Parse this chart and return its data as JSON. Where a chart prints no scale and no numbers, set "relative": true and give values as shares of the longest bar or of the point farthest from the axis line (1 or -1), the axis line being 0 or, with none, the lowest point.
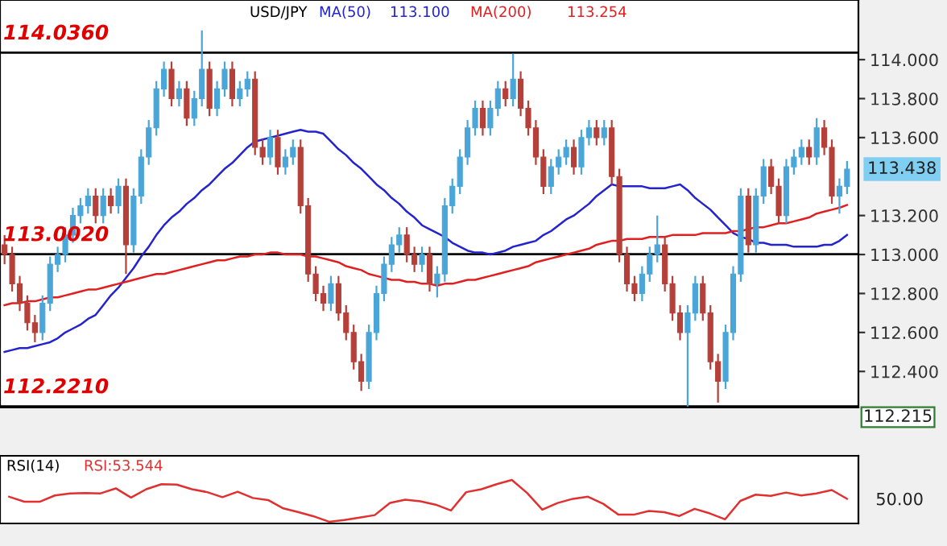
{
  "chart_data": [
    {
      "type": "candlestick",
      "title": "USD/JPY",
      "categories": [
        null,
        null,
        null,
        null,
        null,
        null,
        null,
        null,
        null,
        null,
        null,
        null,
        null,
        null,
        null,
        null,
        null,
        null,
        null,
        null,
        null,
        null,
        null,
        null,
        null,
        null,
        null,
        null,
        null,
        null,
        null,
        null,
        null,
        null,
        null,
        null,
        null,
        null,
        null,
        null,
        null,
        null,
        null,
        null,
        null,
        null,
        null,
        null,
        null,
        null,
        null,
        null,
        null,
        null,
        null,
        null,
        null,
        null,
        null,
        null,
        null,
        null,
        null,
        null,
        null,
        null,
        null,
        null,
        null,
        null,
        null,
        null,
        null,
        null,
        null,
        null,
        null,
        null,
        null,
        null,
        null,
        null,
        null,
        null,
        null,
        null,
        null,
        null,
        null,
        null,
        null,
        null,
        null,
        null,
        null,
        null,
        null,
        null,
        null,
        null,
        null,
        null,
        null,
        null,
        null,
        null,
        null,
        null,
        null,
        null,
        null,
        null
      ],
      "ohlc": [
        [
          113.05,
          113.1,
          112.95,
          113.0
        ],
        [
          113.0,
          113.04,
          112.81,
          112.85
        ],
        [
          112.85,
          112.89,
          112.71,
          112.75
        ],
        [
          112.75,
          112.79,
          112.61,
          112.65
        ],
        [
          112.65,
          112.69,
          112.55,
          112.6
        ],
        [
          112.6,
          112.79,
          112.56,
          112.75
        ],
        [
          112.75,
          112.99,
          112.71,
          112.95
        ],
        [
          112.95,
          113.04,
          112.91,
          113.0
        ],
        [
          113.0,
          113.14,
          112.96,
          113.1
        ],
        [
          113.1,
          113.24,
          113.06,
          113.2
        ],
        [
          113.2,
          113.29,
          113.16,
          113.25
        ],
        [
          113.25,
          113.34,
          113.21,
          113.3
        ],
        [
          113.3,
          113.34,
          113.16,
          113.2
        ],
        [
          113.2,
          113.34,
          113.16,
          113.3
        ],
        [
          113.3,
          113.34,
          113.21,
          113.25
        ],
        [
          113.25,
          113.39,
          113.21,
          113.35
        ],
        [
          113.35,
          113.39,
          112.9,
          113.05
        ],
        [
          113.05,
          113.34,
          113.01,
          113.3
        ],
        [
          113.3,
          113.54,
          113.26,
          113.5
        ],
        [
          113.5,
          113.69,
          113.46,
          113.65
        ],
        [
          113.65,
          113.89,
          113.61,
          113.85
        ],
        [
          113.85,
          113.99,
          113.81,
          113.95
        ],
        [
          113.95,
          113.99,
          113.76,
          113.8
        ],
        [
          113.8,
          113.89,
          113.76,
          113.85
        ],
        [
          113.85,
          113.89,
          113.66,
          113.7
        ],
        [
          113.7,
          113.84,
          113.66,
          113.8
        ],
        [
          113.8,
          114.15,
          113.76,
          113.95
        ],
        [
          113.95,
          113.99,
          113.71,
          113.75
        ],
        [
          113.75,
          113.89,
          113.71,
          113.85
        ],
        [
          113.85,
          113.99,
          113.81,
          113.95
        ],
        [
          113.95,
          113.99,
          113.76,
          113.8
        ],
        [
          113.8,
          113.89,
          113.76,
          113.85
        ],
        [
          113.85,
          113.94,
          113.81,
          113.9
        ],
        [
          113.9,
          113.94,
          113.51,
          113.55
        ],
        [
          113.55,
          113.59,
          113.46,
          113.5
        ],
        [
          113.5,
          113.64,
          113.46,
          113.6
        ],
        [
          113.6,
          113.64,
          113.41,
          113.45
        ],
        [
          113.45,
          113.54,
          113.41,
          113.5
        ],
        [
          113.5,
          113.59,
          113.46,
          113.55
        ],
        [
          113.55,
          113.59,
          113.21,
          113.25
        ],
        [
          113.25,
          113.29,
          112.86,
          112.9
        ],
        [
          112.9,
          112.94,
          112.76,
          112.8
        ],
        [
          112.8,
          112.84,
          112.71,
          112.75
        ],
        [
          112.75,
          112.89,
          112.71,
          112.85
        ],
        [
          112.85,
          112.89,
          112.66,
          112.7
        ],
        [
          112.7,
          112.74,
          112.56,
          112.6
        ],
        [
          112.6,
          112.64,
          112.41,
          112.45
        ],
        [
          112.45,
          112.49,
          112.3,
          112.35
        ],
        [
          112.35,
          112.64,
          112.31,
          112.6
        ],
        [
          112.6,
          112.84,
          112.56,
          112.8
        ],
        [
          112.8,
          112.99,
          112.76,
          112.95
        ],
        [
          112.95,
          113.09,
          112.91,
          113.05
        ],
        [
          113.05,
          113.14,
          113.01,
          113.1
        ],
        [
          113.1,
          113.14,
          112.96,
          113.0
        ],
        [
          113.0,
          113.04,
          112.91,
          112.95
        ],
        [
          112.95,
          113.04,
          112.91,
          113.0
        ],
        [
          113.0,
          113.04,
          112.81,
          112.85
        ],
        [
          112.85,
          112.94,
          112.78,
          112.9
        ],
        [
          112.9,
          113.29,
          112.86,
          113.25
        ],
        [
          113.25,
          113.39,
          113.21,
          113.35
        ],
        [
          113.35,
          113.54,
          113.31,
          113.5
        ],
        [
          113.5,
          113.69,
          113.46,
          113.65
        ],
        [
          113.65,
          113.79,
          113.61,
          113.75
        ],
        [
          113.75,
          113.79,
          113.61,
          113.65
        ],
        [
          113.65,
          113.79,
          113.61,
          113.75
        ],
        [
          113.75,
          113.89,
          113.71,
          113.85
        ],
        [
          113.85,
          113.89,
          113.76,
          113.8
        ],
        [
          113.8,
          114.03,
          113.76,
          113.9
        ],
        [
          113.9,
          113.94,
          113.71,
          113.75
        ],
        [
          113.75,
          113.79,
          113.61,
          113.65
        ],
        [
          113.65,
          113.69,
          113.46,
          113.5
        ],
        [
          113.5,
          113.54,
          113.31,
          113.35
        ],
        [
          113.35,
          113.49,
          113.31,
          113.45
        ],
        [
          113.45,
          113.54,
          113.41,
          113.5
        ],
        [
          113.5,
          113.59,
          113.46,
          113.55
        ],
        [
          113.55,
          113.59,
          113.41,
          113.45
        ],
        [
          113.45,
          113.64,
          113.41,
          113.6
        ],
        [
          113.6,
          113.69,
          113.56,
          113.65
        ],
        [
          113.65,
          113.69,
          113.56,
          113.6
        ],
        [
          113.6,
          113.69,
          113.56,
          113.65
        ],
        [
          113.65,
          113.69,
          113.36,
          113.4
        ],
        [
          113.4,
          113.44,
          112.96,
          113.0
        ],
        [
          113.0,
          113.04,
          112.81,
          112.85
        ],
        [
          112.85,
          112.89,
          112.76,
          112.8
        ],
        [
          112.8,
          112.94,
          112.76,
          112.9
        ],
        [
          112.9,
          113.04,
          112.86,
          113.0
        ],
        [
          113.0,
          113.2,
          112.96,
          113.05
        ],
        [
          113.05,
          113.09,
          112.81,
          112.85
        ],
        [
          112.85,
          112.89,
          112.66,
          112.7
        ],
        [
          112.7,
          112.74,
          112.56,
          112.6
        ],
        [
          112.6,
          112.74,
          112.22,
          112.7
        ],
        [
          112.7,
          112.89,
          112.66,
          112.85
        ],
        [
          112.85,
          112.89,
          112.66,
          112.7
        ],
        [
          112.7,
          112.74,
          112.41,
          112.45
        ],
        [
          112.45,
          112.49,
          112.24,
          112.35
        ],
        [
          112.35,
          112.64,
          112.31,
          112.6
        ],
        [
          112.6,
          112.94,
          112.56,
          112.9
        ],
        [
          112.9,
          113.34,
          112.86,
          113.3
        ],
        [
          113.3,
          113.34,
          113.01,
          113.05
        ],
        [
          113.05,
          113.34,
          113.01,
          113.3
        ],
        [
          113.3,
          113.49,
          113.26,
          113.45
        ],
        [
          113.45,
          113.49,
          113.31,
          113.35
        ],
        [
          113.35,
          113.39,
          113.16,
          113.2
        ],
        [
          113.2,
          113.49,
          113.16,
          113.45
        ],
        [
          113.45,
          113.54,
          113.41,
          113.5
        ],
        [
          113.5,
          113.59,
          113.46,
          113.55
        ],
        [
          113.55,
          113.59,
          113.46,
          113.5
        ],
        [
          113.5,
          113.7,
          113.46,
          113.65
        ],
        [
          113.65,
          113.69,
          113.51,
          113.55
        ],
        [
          113.55,
          113.59,
          113.26,
          113.3
        ],
        [
          113.3,
          113.39,
          113.21,
          113.35
        ],
        [
          113.35,
          113.48,
          113.31,
          113.438
        ]
      ],
      "series": [
        {
          "name": "MA(50)",
          "type": "line",
          "color": "#2323d0",
          "values": [
            112.5,
            112.51,
            112.52,
            112.52,
            112.53,
            112.54,
            112.55,
            112.57,
            112.6,
            112.62,
            112.64,
            112.67,
            112.69,
            112.74,
            112.79,
            112.83,
            112.88,
            112.93,
            112.99,
            113.04,
            113.1,
            113.15,
            113.19,
            113.22,
            113.26,
            113.29,
            113.33,
            113.36,
            113.4,
            113.44,
            113.47,
            113.51,
            113.55,
            113.58,
            113.59,
            113.6,
            113.61,
            113.62,
            113.63,
            113.64,
            113.63,
            113.63,
            113.62,
            113.58,
            113.54,
            113.51,
            113.47,
            113.44,
            113.4,
            113.36,
            113.33,
            113.29,
            113.26,
            113.22,
            113.19,
            113.15,
            113.13,
            113.11,
            113.09,
            113.06,
            113.04,
            113.02,
            113.01,
            113.01,
            113.0,
            113.01,
            113.02,
            113.04,
            113.05,
            113.06,
            113.07,
            113.1,
            113.12,
            113.15,
            113.18,
            113.2,
            113.23,
            113.26,
            113.3,
            113.33,
            113.36,
            113.35,
            113.35,
            113.35,
            113.35,
            113.34,
            113.34,
            113.34,
            113.35,
            113.36,
            113.33,
            113.29,
            113.26,
            113.23,
            113.19,
            113.15,
            113.11,
            113.09,
            113.08,
            113.06,
            113.06,
            113.05,
            113.05,
            113.05,
            113.04,
            113.04,
            113.04,
            113.04,
            113.05,
            113.05,
            113.07,
            113.1
          ]
        },
        {
          "name": "MA(200)",
          "type": "line",
          "color": "#e02020",
          "values": [
            112.74,
            112.75,
            112.75,
            112.76,
            112.76,
            112.77,
            112.78,
            112.78,
            112.79,
            112.8,
            112.81,
            112.82,
            112.82,
            112.83,
            112.84,
            112.85,
            112.86,
            112.87,
            112.88,
            112.89,
            112.9,
            112.9,
            112.91,
            112.92,
            112.93,
            112.94,
            112.95,
            112.96,
            112.97,
            112.97,
            112.98,
            112.99,
            112.99,
            113.0,
            113.0,
            113.01,
            113.01,
            113.0,
            113.0,
            113.0,
            112.99,
            112.99,
            112.98,
            112.97,
            112.96,
            112.94,
            112.93,
            112.92,
            112.9,
            112.89,
            112.88,
            112.87,
            112.87,
            112.86,
            112.86,
            112.85,
            112.85,
            112.84,
            112.85,
            112.85,
            112.86,
            112.87,
            112.87,
            112.88,
            112.89,
            112.9,
            112.91,
            112.92,
            112.93,
            112.94,
            112.96,
            112.97,
            112.98,
            112.99,
            113.0,
            113.01,
            113.02,
            113.03,
            113.05,
            113.06,
            113.07,
            113.07,
            113.08,
            113.08,
            113.08,
            113.09,
            113.09,
            113.09,
            113.1,
            113.1,
            113.1,
            113.1,
            113.11,
            113.11,
            113.11,
            113.11,
            113.12,
            113.12,
            113.13,
            113.14,
            113.14,
            113.15,
            113.16,
            113.16,
            113.17,
            113.18,
            113.19,
            113.21,
            113.22,
            113.23,
            113.24,
            113.254
          ]
        }
      ],
      "ylim": [
        112.215,
        114.306
      ],
      "yticks": [
        {
          "value": 112.4,
          "label": "112.400"
        },
        {
          "value": 112.6,
          "label": "112.600"
        },
        {
          "value": 112.8,
          "label": "112.800"
        },
        {
          "value": 113.0,
          "label": "113.000"
        },
        {
          "value": 113.2,
          "label": "113.200"
        },
        {
          "value": 113.6,
          "label": "113.600"
        },
        {
          "value": 113.8,
          "label": "113.800"
        },
        {
          "value": 114.0,
          "label": "114.000"
        }
      ],
      "tick_labels": "y",
      "ref_lines": [
        {
          "axis": "y",
          "value": 114.036,
          "label": "114.0360",
          "color": "#000000"
        },
        {
          "axis": "y",
          "value": 113.002,
          "label": "113.0020",
          "color": "#000000"
        },
        {
          "axis": "y",
          "value": 112.221,
          "label": "112.2210",
          "color": "#000000"
        }
      ],
      "annotations": [
        "113.100",
        "113.254",
        "113.438",
        "112.215"
      ]
    },
    {
      "type": "line",
      "title": "RSI(14)",
      "relative": true,
      "tick_labels": false,
      "categories": [
        null,
        null,
        null,
        null,
        null,
        null,
        null,
        null,
        null,
        null,
        null,
        null,
        null,
        null,
        null,
        null,
        null,
        null,
        null,
        null,
        null,
        null,
        null,
        null,
        null,
        null,
        null,
        null,
        null,
        null,
        null,
        null,
        null,
        null,
        null,
        null,
        null,
        null,
        null,
        null,
        null,
        null,
        null,
        null,
        null,
        null,
        null,
        null,
        null,
        null,
        null,
        null,
        null,
        null,
        null,
        null
      ],
      "series": [
        {
          "color": "#e03030",
          "values": [
            0.6,
            0.48,
            0.48,
            0.63,
            0.68,
            0.69,
            0.68,
            0.8,
            0.58,
            0.78,
            0.9,
            0.89,
            0.78,
            0.71,
            0.59,
            0.72,
            0.57,
            0.52,
            0.32,
            0.23,
            0.13,
            0,
            0.04,
            0.1,
            0.16,
            0.45,
            0.53,
            0.49,
            0.41,
            0.27,
            0.71,
            0.78,
            0.9,
            1,
            0.69,
            0.29,
            0.45,
            0.55,
            0.6,
            0.43,
            0.17,
            0.17,
            0.26,
            0.23,
            0.14,
            0.31,
            0.2,
            0.06,
            0.5,
            0.65,
            0.62,
            0.7,
            0.63,
            0.68,
            0.76,
            0.55
          ]
        }
      ],
      "annotations": [
        "RSI:53.544",
        "50.00"
      ]
    }
  ]
}
